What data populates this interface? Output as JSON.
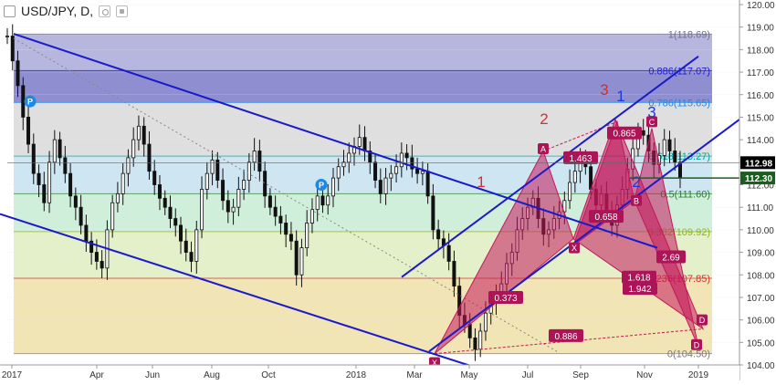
{
  "header": {
    "symbol_label": "USD/JPY, D,",
    "icons": [
      "collapse-icon",
      "circle-settings-icon",
      "gear-settings-icon"
    ]
  },
  "chart_data": {
    "type": "candlestick",
    "title": "USD/JPY, D,",
    "ylim": [
      104.0,
      120.0
    ],
    "y_ticks": [
      "104.00",
      "105.00",
      "106.00",
      "107.00",
      "108.00",
      "109.00",
      "110.00",
      "111.00",
      "112.00",
      "113.00",
      "114.00",
      "115.00",
      "116.00",
      "117.00",
      "118.00",
      "119.00",
      "120.00"
    ],
    "x_ticks": [
      "2017",
      "Apr",
      "Jun",
      "Aug",
      "Oct",
      "2018",
      "Mar",
      "May",
      "Jul",
      "Sep",
      "Nov",
      "2019"
    ],
    "price_labels": [
      {
        "text": "112.98",
        "value": 112.98,
        "color": "#000000"
      },
      {
        "text": "112.30",
        "value": 112.3,
        "color": "#1b5e20"
      }
    ],
    "fib_levels": [
      {
        "ratio": "1",
        "value": 118.69,
        "label": "1(118.69)",
        "fill": "#a9a9d9",
        "label_color": "#6d6d8f"
      },
      {
        "ratio": "0.886",
        "value": 117.07,
        "label": "0.886(117.07)",
        "fill": "#7a7ac8",
        "label_color": "#1a1acc"
      },
      {
        "ratio": "0.786",
        "value": 115.65,
        "label": "0.786(115.65)",
        "fill": "#d9d9d9",
        "label_color": "#1e88e5"
      },
      {
        "ratio": "0.618",
        "value": 113.27,
        "label": "0.618(113.27)",
        "fill": "#c6e0f0",
        "label_color": "#00a69c"
      },
      {
        "ratio": "0.5",
        "value": 111.6,
        "label": "0.5(111.60)",
        "fill": "#c8ecd5",
        "label_color": "#2e7d32"
      },
      {
        "ratio": "0.382",
        "value": 109.92,
        "label": "0.382(109.92)",
        "fill": "#dfedc0",
        "label_color": "#8db600"
      },
      {
        "ratio": "0.236",
        "value": 107.85,
        "label": "0.236(107.85)",
        "fill": "#eedfa8",
        "label_color": "#d32f2f"
      },
      {
        "ratio": "0",
        "value": 104.5,
        "label": "0(104.50)",
        "fill": "#f1c8cb",
        "label_color": "#7a7a7a"
      }
    ],
    "ohlc_path": [
      118.6,
      117.5,
      116.4,
      115.0,
      113.8,
      112.5,
      112.0,
      111.2,
      113.0,
      114.0,
      113.2,
      112.5,
      111.5,
      111.0,
      110.2,
      109.5,
      109.0,
      108.6,
      108.3,
      110.0,
      111.2,
      111.6,
      112.5,
      113.2,
      114.0,
      114.6,
      113.8,
      112.6,
      112.0,
      111.4,
      111.0,
      110.5,
      110.2,
      109.5,
      109.0,
      108.6,
      110.0,
      111.8,
      112.5,
      113.1,
      112.2,
      111.3,
      110.8,
      111.0,
      111.8,
      112.2,
      113.0,
      113.5,
      112.6,
      111.5,
      111.0,
      110.6,
      110.3,
      109.8,
      109.5,
      108.0,
      109.2,
      110.3,
      110.9,
      111.5,
      111.1,
      111.5,
      112.3,
      112.8,
      113.0,
      113.4,
      113.7,
      114.1,
      113.5,
      113.0,
      112.2,
      111.6,
      112.3,
      112.5,
      112.8,
      113.4,
      113.2,
      112.7,
      112.5,
      112.6,
      111.5,
      110.0,
      109.6,
      109.3,
      108.6,
      107.5,
      106.2,
      105.8,
      105.2,
      104.7,
      105.5,
      106.3,
      106.8,
      107.2,
      107.6,
      108.5,
      109.0,
      110.0,
      110.5,
      111.0,
      111.4,
      110.5,
      109.8,
      110.0,
      110.5,
      110.8,
      111.3,
      112.1,
      112.6,
      113.2,
      112.8,
      111.8,
      111.1,
      111.6,
      110.8,
      110.2,
      111.1,
      111.8,
      112.7,
      113.6,
      114.4,
      114.2,
      113.5,
      112.9,
      113.3,
      114.0,
      113.5,
      113.0,
      112.3
    ],
    "pattern_labels": [
      {
        "text": "P",
        "kind": "pivot"
      },
      {
        "text": "P",
        "kind": "pivot"
      },
      {
        "text": "X",
        "kind": "point"
      },
      {
        "text": "A",
        "kind": "point"
      },
      {
        "text": "B",
        "kind": "point"
      },
      {
        "text": "C",
        "kind": "point"
      },
      {
        "text": "D",
        "kind": "point"
      },
      {
        "text": "X",
        "kind": "point"
      },
      {
        "text": "D",
        "kind": "point"
      }
    ],
    "ratio_labels": [
      "0.373",
      "1.463",
      "0.658",
      "0.865",
      "2.69",
      "1.618",
      "1.942",
      "0.886"
    ],
    "wave_labels": [
      {
        "text": "1",
        "color": "#d32f2f"
      },
      {
        "text": "2",
        "color": "#d32f2f"
      },
      {
        "text": "3",
        "color": "#d32f2f"
      },
      {
        "text": "1",
        "color": "#1e3ad8"
      },
      {
        "text": "2",
        "color": "#1e3ad8"
      },
      {
        "text": "3",
        "color": "#1e3ad8"
      }
    ],
    "colors": {
      "candle": "#111111",
      "trendline": "#1a1acc",
      "harmonic": "#c2185b",
      "label_bg": "#ad1457",
      "pivot": "#1e88e5",
      "axis_bg": "#ffffff",
      "grid": "#e6e6e6"
    },
    "grid": true,
    "legend": "none"
  }
}
